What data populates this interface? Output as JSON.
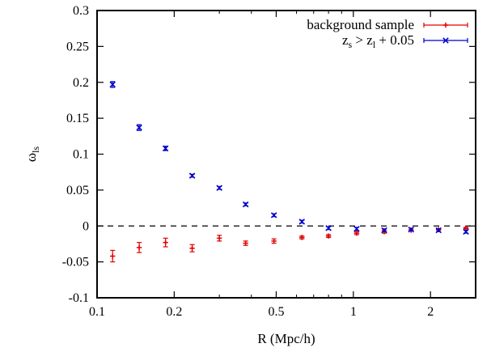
{
  "chart_data": {
    "type": "scatter",
    "title": "",
    "xlabel": "R (Mpc/h)",
    "ylabel_main": "ω",
    "ylabel_sub": "ls",
    "x_scale": "log",
    "xlim": [
      0.1,
      3.0
    ],
    "ylim": [
      -0.1,
      0.3
    ],
    "x_ticks": [
      0.1,
      0.2,
      0.5,
      1,
      2
    ],
    "x_tick_labels": [
      "0.1",
      "0.2",
      "0.5",
      "1",
      "2"
    ],
    "y_ticks": [
      -0.1,
      -0.05,
      0,
      0.05,
      0.1,
      0.15,
      0.2,
      0.25,
      0.3
    ],
    "y_tick_labels": [
      "-0.1",
      "-0.05",
      "0",
      "0.05",
      "0.1",
      "0.15",
      "0.2",
      "0.25",
      "0.3"
    ],
    "reference_line": {
      "y": 0,
      "style": "dashed"
    },
    "legend_position": "top-right",
    "series": [
      {
        "name": "background sample",
        "marker": "plus",
        "color": "#e00000",
        "points": [
          {
            "x": 0.115,
            "y": -0.042,
            "err": 0.008
          },
          {
            "x": 0.146,
            "y": -0.03,
            "err": 0.007
          },
          {
            "x": 0.185,
            "y": -0.023,
            "err": 0.006
          },
          {
            "x": 0.235,
            "y": -0.031,
            "err": 0.005
          },
          {
            "x": 0.3,
            "y": -0.017,
            "err": 0.004
          },
          {
            "x": 0.38,
            "y": -0.024,
            "err": 0.003
          },
          {
            "x": 0.49,
            "y": -0.021,
            "err": 0.003
          },
          {
            "x": 0.63,
            "y": -0.016,
            "err": 0.002
          },
          {
            "x": 0.8,
            "y": -0.014,
            "err": 0.002
          },
          {
            "x": 1.03,
            "y": -0.01,
            "err": 0.002
          },
          {
            "x": 1.32,
            "y": -0.008,
            "err": 0.002
          },
          {
            "x": 1.68,
            "y": -0.006,
            "err": 0.001
          },
          {
            "x": 2.15,
            "y": -0.005,
            "err": 0.001
          },
          {
            "x": 2.75,
            "y": -0.003,
            "err": 0.001
          }
        ]
      },
      {
        "name": "z_s > z_l + 0.05",
        "legend_parts": {
          "z1": "z",
          "s": "s",
          "mid": " > z",
          "l": "l",
          "tail": " + 0.05"
        },
        "marker": "cross",
        "color": "#0000cc",
        "points": [
          {
            "x": 0.115,
            "y": 0.197,
            "err": 0.004
          },
          {
            "x": 0.146,
            "y": 0.137,
            "err": 0.004
          },
          {
            "x": 0.185,
            "y": 0.108,
            "err": 0.003
          },
          {
            "x": 0.235,
            "y": 0.07,
            "err": 0.002
          },
          {
            "x": 0.3,
            "y": 0.053,
            "err": 0.002
          },
          {
            "x": 0.38,
            "y": 0.03,
            "err": 0.002
          },
          {
            "x": 0.49,
            "y": 0.015,
            "err": 0.002
          },
          {
            "x": 0.63,
            "y": 0.006,
            "err": 0.002
          },
          {
            "x": 0.8,
            "y": -0.003,
            "err": 0.002
          },
          {
            "x": 1.03,
            "y": -0.004,
            "err": 0.002
          },
          {
            "x": 1.32,
            "y": -0.006,
            "err": 0.002
          },
          {
            "x": 1.68,
            "y": -0.005,
            "err": 0.002
          },
          {
            "x": 2.15,
            "y": -0.006,
            "err": 0.002
          },
          {
            "x": 2.75,
            "y": -0.008,
            "err": 0.002
          }
        ]
      }
    ]
  }
}
